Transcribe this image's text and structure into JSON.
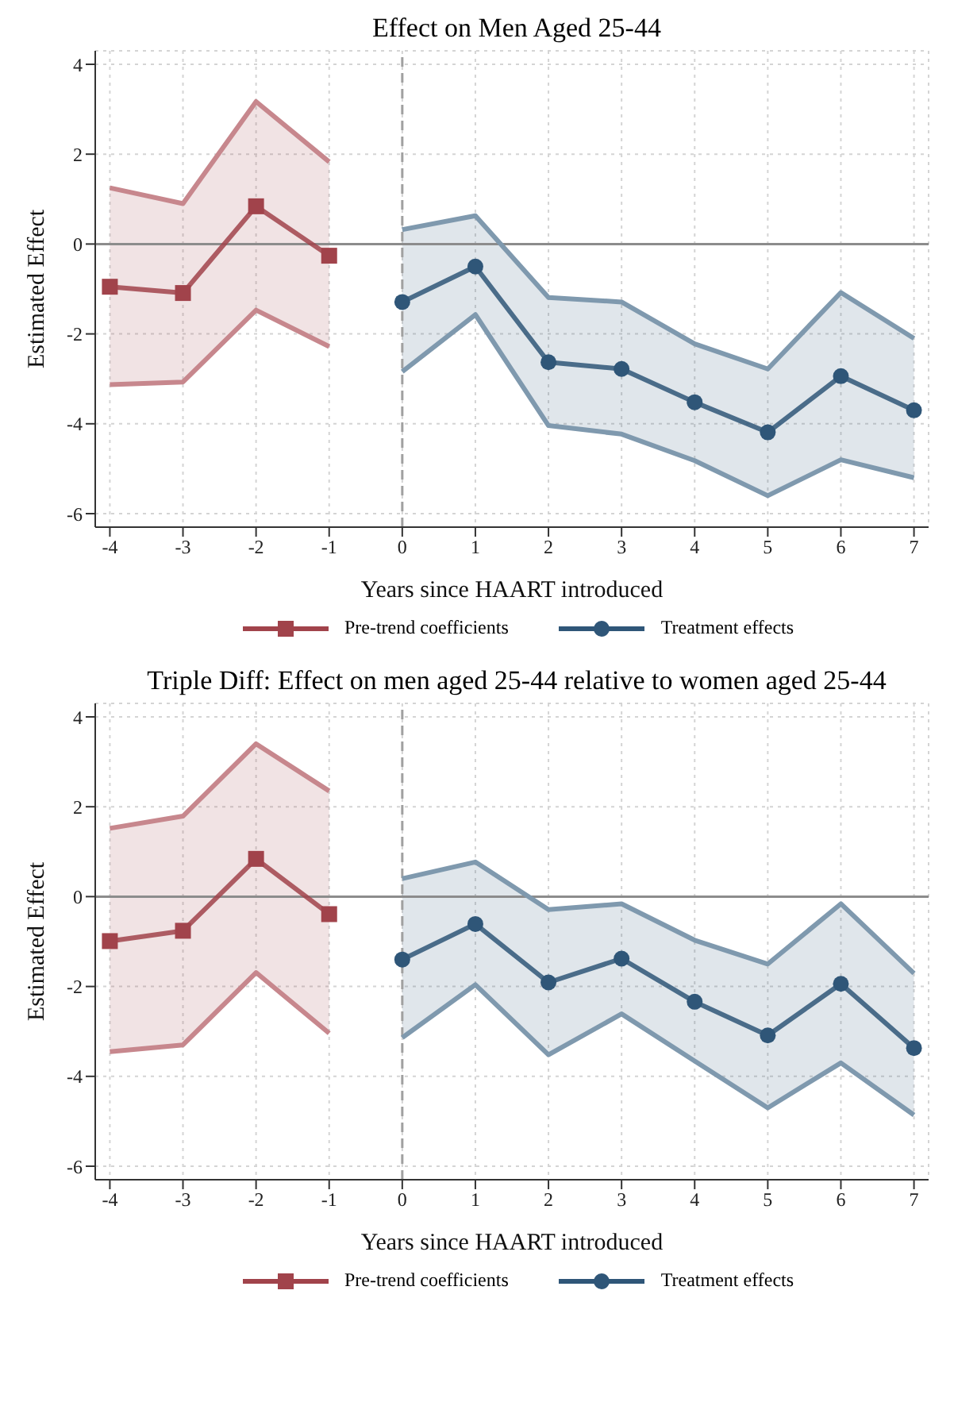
{
  "chart_data": [
    {
      "type": "line",
      "title": "Effect on Men Aged 25-44",
      "xlabel": "Years since HAART introduced",
      "ylabel": "Estimated Effect",
      "xlim": [
        -4.2,
        7.2
      ],
      "xticks": [
        -4,
        -3,
        -2,
        -1,
        0,
        1,
        2,
        3,
        4,
        5,
        6,
        7
      ],
      "ylim": [
        -6.3,
        4.3
      ],
      "yticks": [
        -6,
        -4,
        -2,
        0,
        2,
        4
      ],
      "grid": true,
      "legend": "bottom",
      "line_style": "solid",
      "ref_lines": [
        {
          "axis": "y",
          "value": 0,
          "color": "#8c8c8c",
          "line_style": "solid"
        },
        {
          "axis": "x",
          "value": 0,
          "color": "#a0a0a0",
          "line_style": "dashed"
        }
      ],
      "series": [
        {
          "name": "Pre-trend coefficients",
          "color": "#a1434b",
          "marker": "square",
          "x": [
            -4,
            -3,
            -2,
            -1
          ],
          "values": [
            -0.95,
            -1.09,
            0.84,
            -0.26
          ],
          "lower": [
            -3.13,
            -3.07,
            -1.47,
            -2.28
          ],
          "upper": [
            1.25,
            0.9,
            3.17,
            1.83
          ]
        },
        {
          "name": "Treatment effects",
          "color": "#2f5678",
          "marker": "circle",
          "x": [
            0,
            1,
            2,
            3,
            4,
            5,
            6,
            7
          ],
          "values": [
            -1.29,
            -0.5,
            -2.63,
            -2.78,
            -3.52,
            -4.19,
            -2.94,
            -3.7
          ],
          "lower": [
            -2.84,
            -1.57,
            -4.04,
            -4.23,
            -4.82,
            -5.6,
            -4.8,
            -5.2
          ],
          "upper": [
            0.32,
            0.63,
            -1.19,
            -1.29,
            -2.22,
            -2.78,
            -1.08,
            -2.1
          ]
        },
        {
          "color": "#c7878d",
          "marker": "none",
          "x": [
            -4,
            -3,
            -2,
            -1
          ],
          "values": [
            -3.13,
            -3.07,
            -1.47,
            -2.28
          ]
        },
        {
          "color": "#c7878d",
          "marker": "none",
          "x": [
            -4,
            -3,
            -2,
            -1
          ],
          "values": [
            1.25,
            0.9,
            3.17,
            1.83
          ]
        },
        {
          "color": "#7f99ae",
          "marker": "none",
          "x": [
            0,
            1,
            2,
            3,
            4,
            5,
            6,
            7
          ],
          "values": [
            -2.84,
            -1.57,
            -4.04,
            -4.23,
            -4.82,
            -5.6,
            -4.8,
            -5.2
          ]
        },
        {
          "color": "#7f99ae",
          "marker": "none",
          "x": [
            0,
            1,
            2,
            3,
            4,
            5,
            6,
            7
          ],
          "values": [
            0.32,
            0.63,
            -1.19,
            -1.29,
            -2.22,
            -2.78,
            -1.08,
            -2.1
          ]
        }
      ]
    },
    {
      "type": "line",
      "title": "Triple Diff: Effect on men aged 25-44 relative to women aged 25-44",
      "xlabel": "Years since HAART introduced",
      "ylabel": "Estimated Effect",
      "xlim": [
        -4.2,
        7.2
      ],
      "xticks": [
        -4,
        -3,
        -2,
        -1,
        0,
        1,
        2,
        3,
        4,
        5,
        6,
        7
      ],
      "ylim": [
        -6.3,
        4.3
      ],
      "yticks": [
        -6,
        -4,
        -2,
        0,
        2,
        4
      ],
      "grid": true,
      "legend": "bottom",
      "line_style": "solid",
      "ref_lines": [
        {
          "axis": "y",
          "value": 0,
          "color": "#8c8c8c",
          "line_style": "solid"
        },
        {
          "axis": "x",
          "value": 0,
          "color": "#a0a0a0",
          "line_style": "dashed"
        }
      ],
      "series": [
        {
          "name": "Pre-trend coefficients",
          "color": "#a1434b",
          "marker": "square",
          "x": [
            -4,
            -3,
            -2,
            -1
          ],
          "values": [
            -0.99,
            -0.76,
            0.84,
            -0.39
          ],
          "lower": [
            -3.45,
            -3.3,
            -1.69,
            -3.04
          ],
          "upper": [
            1.52,
            1.79,
            3.4,
            2.35
          ]
        },
        {
          "name": "Treatment effects",
          "color": "#2f5678",
          "marker": "circle",
          "x": [
            0,
            1,
            2,
            3,
            4,
            5,
            6,
            7
          ],
          "values": [
            -1.4,
            -0.61,
            -1.91,
            -1.38,
            -2.34,
            -3.09,
            -1.94,
            -3.37
          ],
          "lower": [
            -3.14,
            -1.96,
            -3.52,
            -2.61,
            -3.66,
            -4.7,
            -3.7,
            -4.86
          ],
          "upper": [
            0.4,
            0.77,
            -0.29,
            -0.16,
            -0.97,
            -1.5,
            -0.16,
            -1.71
          ]
        },
        {
          "color": "#c7878d",
          "marker": "none",
          "x": [
            -4,
            -3,
            -2,
            -1
          ],
          "values": [
            -3.45,
            -3.3,
            -1.69,
            -3.04
          ]
        },
        {
          "color": "#c7878d",
          "marker": "none",
          "x": [
            -4,
            -3,
            -2,
            -1
          ],
          "values": [
            1.52,
            1.79,
            3.4,
            2.35
          ]
        },
        {
          "color": "#7f99ae",
          "marker": "none",
          "x": [
            0,
            1,
            2,
            3,
            4,
            5,
            6,
            7
          ],
          "values": [
            -3.14,
            -1.96,
            -3.52,
            -2.61,
            -3.66,
            -4.7,
            -3.7,
            -4.86
          ]
        },
        {
          "color": "#7f99ae",
          "marker": "none",
          "x": [
            0,
            1,
            2,
            3,
            4,
            5,
            6,
            7
          ],
          "values": [
            0.4,
            0.77,
            -0.29,
            -0.16,
            -0.97,
            -1.5,
            -0.16,
            -1.71
          ]
        }
      ]
    }
  ]
}
